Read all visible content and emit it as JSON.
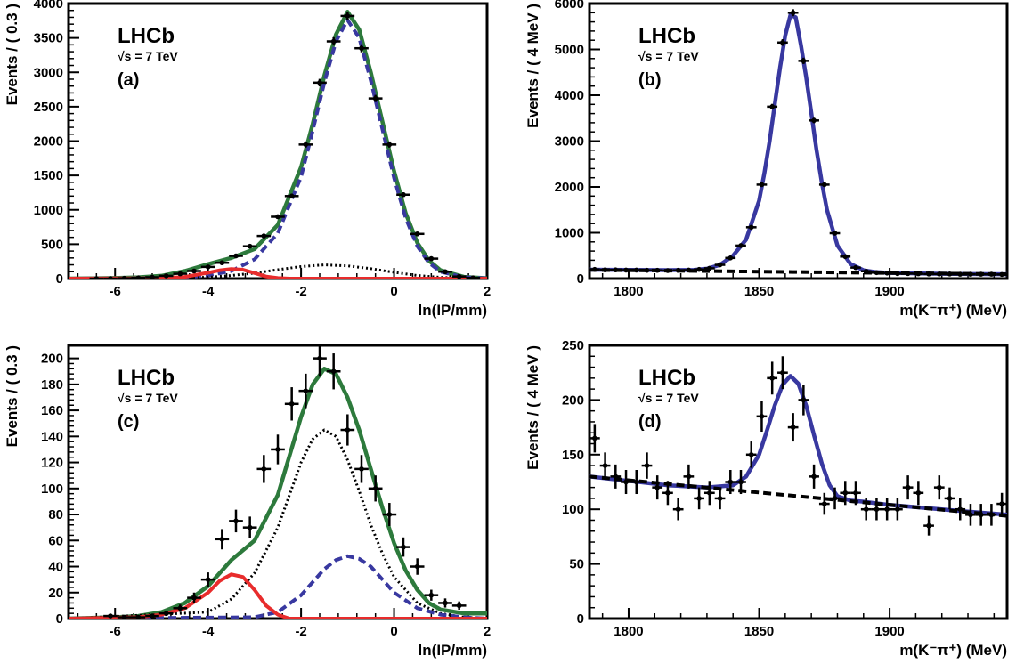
{
  "chart_data": [
    {
      "id": "a",
      "type": "scatter",
      "panel_label": "(a)",
      "experiment_label": "LHCb",
      "energy_label": "√s = 7 TeV",
      "xlabel": "ln(IP/mm)",
      "ylabel": "Events / ( 0.3 )",
      "xlim": [
        -7,
        2
      ],
      "ylim": [
        0,
        4000
      ],
      "xticks": [
        -6,
        -4,
        -2,
        0,
        2
      ],
      "yticks": [
        0,
        500,
        1000,
        1500,
        2000,
        2500,
        3000,
        3500,
        4000
      ],
      "xerr": 0.15,
      "points": {
        "x": [
          -6.4,
          -6.1,
          -5.8,
          -5.5,
          -5.2,
          -4.9,
          -4.6,
          -4.3,
          -4.0,
          -3.7,
          -3.4,
          -3.1,
          -2.8,
          -2.5,
          -2.2,
          -1.9,
          -1.6,
          -1.3,
          -1.0,
          -0.7,
          -0.4,
          -0.1,
          0.2,
          0.5,
          0.8,
          1.1,
          1.4,
          1.7
        ],
        "y": [
          0,
          0,
          5,
          10,
          20,
          40,
          70,
          110,
          170,
          230,
          330,
          470,
          620,
          900,
          1200,
          1950,
          2850,
          3450,
          3820,
          3350,
          2620,
          1950,
          1220,
          650,
          290,
          100,
          30,
          10
        ],
        "yerr": [
          0,
          0,
          3,
          4,
          5,
          7,
          9,
          11,
          14,
          16,
          19,
          22,
          25,
          30,
          35,
          45,
          55,
          60,
          62,
          58,
          52,
          45,
          35,
          26,
          17,
          10,
          6,
          3
        ]
      },
      "series": [
        {
          "name": "",
          "style": "solid",
          "color": "#2d7a3c",
          "x": [
            -7,
            -6.5,
            -6,
            -5.5,
            -5,
            -4.5,
            -4,
            -3.5,
            -3,
            -2.5,
            -2,
            -1.75,
            -1.5,
            -1.25,
            -1,
            -0.75,
            -0.5,
            -0.25,
            0,
            0.25,
            0.5,
            0.75,
            1,
            1.5,
            2
          ],
          "y": [
            0,
            2,
            8,
            18,
            40,
            110,
            210,
            300,
            430,
            780,
            1620,
            2250,
            2950,
            3550,
            3880,
            3620,
            3000,
            2280,
            1560,
            950,
            520,
            260,
            120,
            25,
            5
          ]
        },
        {
          "name": "",
          "style": "dashed",
          "color": "#3838a0",
          "x": [
            -7,
            -5,
            -4.5,
            -4,
            -3.5,
            -3,
            -2.5,
            -2,
            -1.75,
            -1.5,
            -1.25,
            -1,
            -0.75,
            -0.5,
            -0.25,
            0,
            0.25,
            0.5,
            0.75,
            1,
            1.5,
            2
          ],
          "y": [
            0,
            5,
            15,
            45,
            110,
            280,
            660,
            1480,
            2150,
            2850,
            3450,
            3760,
            3500,
            2880,
            2170,
            1460,
            880,
            470,
            230,
            100,
            20,
            4
          ]
        },
        {
          "name": "",
          "style": "dotted",
          "color": "#000000",
          "x": [
            -7,
            -5,
            -4,
            -3.5,
            -3,
            -2.5,
            -2,
            -1.5,
            -1,
            -0.5,
            0,
            0.5,
            1,
            1.5,
            2
          ],
          "y": [
            0,
            5,
            20,
            45,
            80,
            130,
            175,
            200,
            185,
            145,
            90,
            45,
            18,
            5,
            1
          ]
        },
        {
          "name": "",
          "style": "solid",
          "color": "#e82c2c",
          "x": [
            -7,
            -5,
            -4.5,
            -4,
            -3.75,
            -3.5,
            -3.25,
            -3,
            -2.75,
            -2.5,
            -2.25,
            2
          ],
          "y": [
            0,
            5,
            25,
            85,
            120,
            140,
            130,
            80,
            30,
            8,
            0,
            0
          ]
        }
      ]
    },
    {
      "id": "b",
      "type": "scatter",
      "panel_label": "(b)",
      "experiment_label": "LHCb",
      "energy_label": "√s = 7 TeV",
      "xlabel": "m(K⁻π⁺) (MeV)",
      "ylabel": "Events / ( 4 MeV )",
      "xlim": [
        1785,
        1945
      ],
      "ylim": [
        0,
        6000
      ],
      "xticks": [
        1800,
        1850,
        1900
      ],
      "yticks": [
        0,
        1000,
        2000,
        3000,
        4000,
        5000,
        6000
      ],
      "xerr": 2,
      "points": {
        "x": [
          1787,
          1791,
          1795,
          1799,
          1803,
          1807,
          1811,
          1815,
          1819,
          1823,
          1827,
          1831,
          1835,
          1839,
          1843,
          1847,
          1851,
          1855,
          1859,
          1863,
          1867,
          1871,
          1875,
          1879,
          1883,
          1887,
          1891,
          1895,
          1899,
          1903,
          1907,
          1911,
          1915,
          1919,
          1923,
          1927,
          1931,
          1935,
          1939,
          1943
        ],
        "y": [
          200,
          190,
          190,
          185,
          185,
          180,
          180,
          175,
          180,
          185,
          200,
          225,
          300,
          450,
          720,
          1120,
          2050,
          3750,
          5150,
          5800,
          4750,
          3450,
          2050,
          990,
          480,
          240,
          160,
          130,
          120,
          110,
          110,
          105,
          100,
          100,
          100,
          95,
          95,
          95,
          95,
          90
        ],
        "yerr": [
          14,
          14,
          14,
          14,
          14,
          13,
          13,
          13,
          13,
          14,
          14,
          15,
          17,
          21,
          27,
          33,
          45,
          61,
          72,
          76,
          69,
          59,
          45,
          31,
          22,
          15,
          13,
          11,
          11,
          10,
          10,
          10,
          10,
          10,
          10,
          10,
          10,
          10,
          10,
          9
        ]
      },
      "series": [
        {
          "name": "",
          "style": "solid",
          "color": "#3838a0",
          "x": [
            1785,
            1800,
            1815,
            1825,
            1830,
            1835,
            1840,
            1845,
            1850,
            1852,
            1854,
            1856,
            1858,
            1860,
            1862,
            1864,
            1866,
            1868,
            1870,
            1872,
            1874,
            1876,
            1880,
            1885,
            1890,
            1895,
            1900,
            1910,
            1920,
            1930,
            1945
          ],
          "y": [
            195,
            190,
            185,
            190,
            215,
            300,
            500,
            850,
            1700,
            2300,
            3000,
            3800,
            4600,
            5300,
            5750,
            5700,
            5100,
            4400,
            3600,
            2800,
            2100,
            1500,
            720,
            320,
            180,
            140,
            125,
            115,
            105,
            100,
            95
          ]
        },
        {
          "name": "",
          "style": "dashed",
          "color": "#000000",
          "x": [
            1785,
            1945
          ],
          "y": [
            190,
            95
          ]
        }
      ]
    },
    {
      "id": "c",
      "type": "scatter",
      "panel_label": "(c)",
      "experiment_label": "LHCb",
      "energy_label": "√s = 7 TeV",
      "xlabel": "ln(IP/mm)",
      "ylabel": "Events / ( 0.3 )",
      "xlim": [
        -7,
        2
      ],
      "ylim": [
        0,
        210
      ],
      "xticks": [
        -6,
        -4,
        -2,
        0,
        2
      ],
      "yticks": [
        0,
        20,
        40,
        60,
        80,
        100,
        120,
        140,
        160,
        180,
        200
      ],
      "xerr": 0.15,
      "points": {
        "x": [
          -6.1,
          -5.8,
          -5.5,
          -5.2,
          -4.9,
          -4.6,
          -4.3,
          -4.0,
          -3.7,
          -3.4,
          -3.1,
          -2.8,
          -2.5,
          -2.2,
          -1.9,
          -1.6,
          -1.3,
          -1.0,
          -0.7,
          -0.4,
          -0.1,
          0.2,
          0.5,
          0.8,
          1.1,
          1.4
        ],
        "y": [
          2,
          1,
          1,
          2,
          4,
          8,
          16,
          30,
          61,
          75,
          70,
          115,
          130,
          165,
          175,
          200,
          190,
          145,
          115,
          100,
          80,
          55,
          40,
          18,
          12,
          10
        ],
        "yerr": [
          1.4,
          1,
          1,
          1.4,
          2,
          2.8,
          4,
          5.5,
          7.8,
          8.7,
          8.4,
          10.7,
          11.4,
          12.8,
          13.2,
          14.1,
          13.8,
          12,
          10.7,
          10,
          8.9,
          7.4,
          6.3,
          4.2,
          3.5,
          3.2
        ]
      },
      "series": [
        {
          "name": "",
          "style": "solid",
          "color": "#2d7a3c",
          "x": [
            -7,
            -6,
            -5.5,
            -5,
            -4.5,
            -4,
            -3.5,
            -3,
            -2.5,
            -2,
            -1.75,
            -1.5,
            -1.25,
            -1,
            -0.75,
            -0.5,
            -0.25,
            0,
            0.25,
            0.5,
            0.75,
            1,
            1.5,
            2
          ],
          "y": [
            0,
            1,
            2,
            5,
            12,
            25,
            45,
            60,
            95,
            155,
            180,
            192,
            188,
            170,
            145,
            115,
            85,
            58,
            37,
            22,
            12,
            7,
            4,
            4
          ]
        },
        {
          "name": "",
          "style": "dotted",
          "color": "#000000",
          "x": [
            -7,
            -4,
            -3.5,
            -3,
            -2.5,
            -2,
            -1.75,
            -1.5,
            -1.25,
            -1,
            -0.75,
            -0.5,
            -0.25,
            0,
            0.5,
            1,
            1.5,
            2
          ],
          "y": [
            0,
            5,
            15,
            35,
            70,
            120,
            138,
            145,
            140,
            122,
            98,
            72,
            50,
            32,
            12,
            4,
            1,
            0
          ]
        },
        {
          "name": "",
          "style": "dashed",
          "color": "#3838a0",
          "x": [
            -7,
            -3,
            -2.5,
            -2,
            -1.5,
            -1.25,
            -1,
            -0.75,
            -0.5,
            -0.25,
            0,
            0.5,
            1,
            1.5,
            2
          ],
          "y": [
            0,
            1,
            5,
            18,
            38,
            45,
            48,
            46,
            40,
            30,
            20,
            8,
            3,
            1,
            0
          ]
        },
        {
          "name": "",
          "style": "solid",
          "color": "#e82c2c",
          "x": [
            -7,
            -5.5,
            -5,
            -4.5,
            -4,
            -3.75,
            -3.5,
            -3.25,
            -3,
            -2.75,
            -2.5,
            -2.25,
            2
          ],
          "y": [
            0,
            1,
            3,
            8,
            20,
            29,
            34,
            32,
            22,
            10,
            3,
            0,
            0
          ]
        }
      ]
    },
    {
      "id": "d",
      "type": "scatter",
      "panel_label": "(d)",
      "experiment_label": "LHCb",
      "energy_label": "√s = 7 TeV",
      "xlabel": "m(K⁻π⁺) (MeV)",
      "ylabel": "Events / ( 4 MeV )",
      "xlim": [
        1785,
        1945
      ],
      "ylim": [
        0,
        250
      ],
      "xticks": [
        1800,
        1850,
        1900
      ],
      "yticks": [
        0,
        50,
        100,
        150,
        200,
        250
      ],
      "xerr": 2,
      "points": {
        "x": [
          1787,
          1791,
          1795,
          1799,
          1803,
          1807,
          1811,
          1815,
          1819,
          1823,
          1827,
          1831,
          1835,
          1839,
          1843,
          1847,
          1851,
          1855,
          1859,
          1863,
          1867,
          1871,
          1875,
          1879,
          1883,
          1887,
          1891,
          1895,
          1899,
          1903,
          1907,
          1911,
          1915,
          1919,
          1923,
          1927,
          1931,
          1935,
          1939,
          1943
        ],
        "y": [
          165,
          140,
          130,
          125,
          125,
          140,
          120,
          115,
          100,
          130,
          110,
          115,
          110,
          125,
          125,
          150,
          185,
          220,
          225,
          175,
          200,
          130,
          105,
          110,
          115,
          115,
          100,
          100,
          100,
          100,
          120,
          115,
          85,
          120,
          110,
          100,
          95,
          95,
          95,
          105
        ],
        "yerr": [
          13,
          12,
          11,
          11,
          11,
          12,
          11,
          11,
          10,
          11,
          10,
          11,
          10,
          11,
          11,
          12,
          14,
          15,
          15,
          13,
          14,
          11,
          10,
          10,
          11,
          11,
          10,
          10,
          10,
          10,
          11,
          11,
          9,
          11,
          10,
          10,
          10,
          10,
          10,
          10
        ]
      },
      "series": [
        {
          "name": "",
          "style": "solid",
          "color": "#3838a0",
          "x": [
            1785,
            1800,
            1815,
            1830,
            1840,
            1845,
            1850,
            1853,
            1856,
            1859,
            1862,
            1865,
            1868,
            1871,
            1874,
            1877,
            1880,
            1885,
            1890,
            1900,
            1910,
            1920,
            1930,
            1945
          ],
          "y": [
            130,
            126,
            122,
            120,
            122,
            130,
            150,
            172,
            195,
            214,
            222,
            215,
            195,
            168,
            142,
            122,
            112,
            108,
            107,
            104,
            102,
            100,
            98,
            95
          ]
        },
        {
          "name": "",
          "style": "dashed",
          "color": "#000000",
          "x": [
            1785,
            1945
          ],
          "y": [
            130,
            94
          ]
        }
      ]
    }
  ]
}
